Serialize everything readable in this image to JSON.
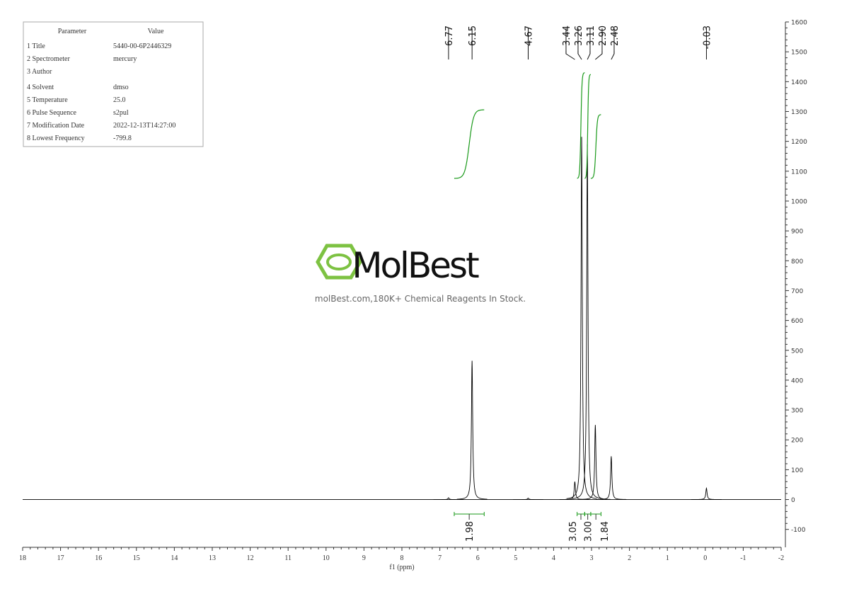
{
  "chart_data": {
    "type": "nmr",
    "x": [
      6.77,
      6.15,
      4.67,
      3.44,
      3.26,
      3.11,
      2.9,
      2.48,
      -0.03
    ],
    "x_labels": [
      "6.77",
      "6.15",
      "4.67",
      "3.44",
      "3.26",
      "3.11",
      "2.90",
      "2.48",
      "-0.03"
    ],
    "values": [
      6,
      465,
      5,
      60,
      1215,
      1190,
      250,
      145,
      38
    ],
    "color": "#000000",
    "integrals": [
      {
        "from": 6.62,
        "to": 5.83,
        "value": 1.98,
        "label": "1.98"
      },
      {
        "from": 3.38,
        "to": 3.18,
        "value": 3.05,
        "label": "3.05"
      },
      {
        "from": 3.18,
        "to": 3.02,
        "value": 3,
        "label": "3.00"
      },
      {
        "from": 3.02,
        "to": 2.75,
        "value": 1.84,
        "label": "1.84"
      }
    ],
    "integral_color": "#1a9a1a",
    "xlim": [
      18,
      -2
    ],
    "xticks": [
      18,
      17,
      16,
      15,
      14,
      13,
      12,
      11,
      10,
      9,
      8,
      7,
      6,
      5,
      4,
      3,
      2,
      1,
      0,
      -1,
      -2
    ],
    "xlabel": "f1 (ppm)",
    "ylim": [
      -160,
      1600
    ],
    "yticks": [
      -100,
      0,
      100,
      200,
      300,
      400,
      500,
      600,
      700,
      800,
      900,
      1000,
      1100,
      1200,
      1300,
      1400,
      1500,
      1600
    ]
  },
  "parameters": {
    "header": [
      "Parameter",
      "Value"
    ],
    "rows": [
      [
        "1 Title",
        "5440-00-6P2446329"
      ],
      [
        "2 Spectrometer",
        "mercury"
      ],
      [
        "3 Author",
        ""
      ],
      [
        "4 Solvent",
        "dmso"
      ],
      [
        "5 Temperature",
        "25.0"
      ],
      [
        "6 Pulse Sequence",
        "s2pul"
      ],
      [
        "7 Modification Date",
        "2022-12-13T14:27:00"
      ],
      [
        "8 Lowest Frequency",
        "-799.8"
      ]
    ]
  },
  "watermark": {
    "brand": "MolBest",
    "tagline": "molBest.com,180K+ Chemical Reagents In Stock."
  }
}
